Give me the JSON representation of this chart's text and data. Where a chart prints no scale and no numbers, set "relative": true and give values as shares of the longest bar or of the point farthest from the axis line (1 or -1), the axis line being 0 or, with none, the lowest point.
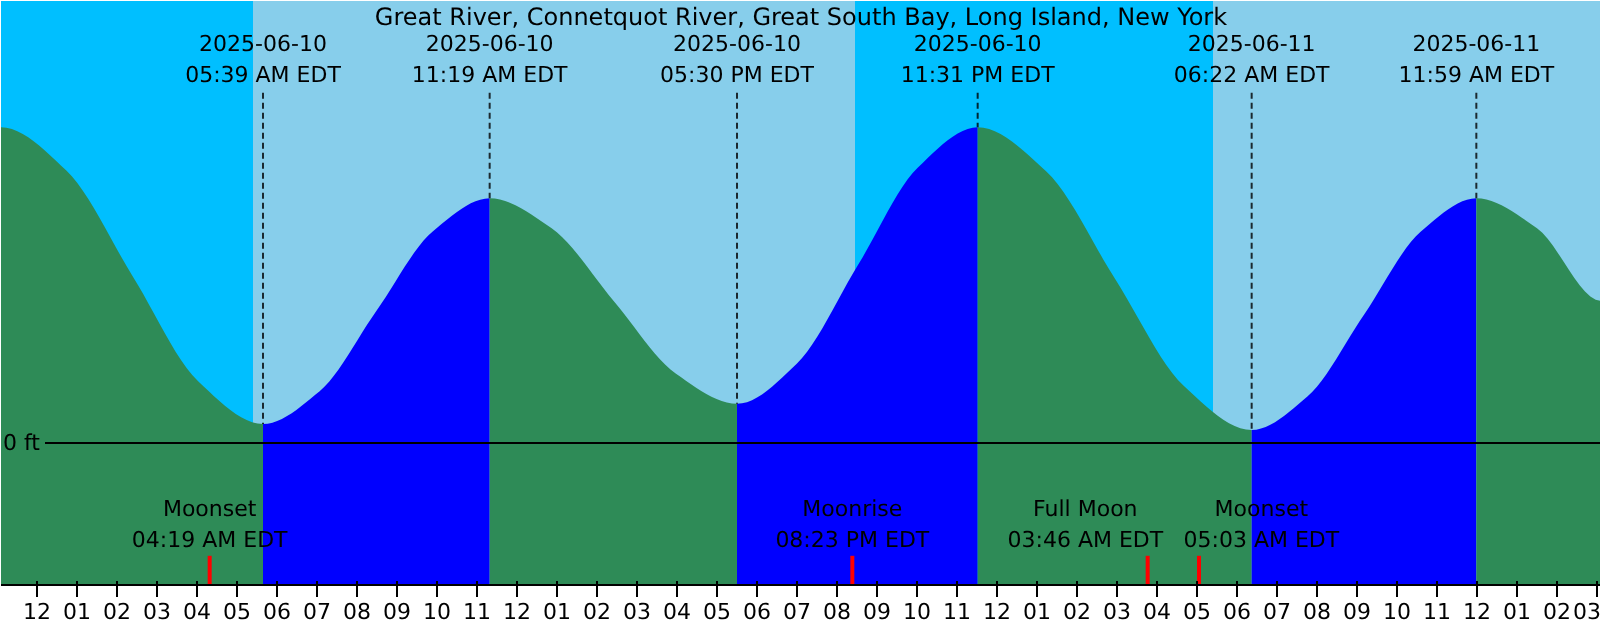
{
  "chart_data": {
    "type": "area",
    "relative": true,
    "title": "Great River, Connetquot River, Great South Bay, Long Island, New York",
    "xlim": [
      "2025-06-09T23:06",
      "2025-06-11T15:06"
    ],
    "xticks": [
      {
        "value": "2025-06-10T00:00",
        "label": "12"
      },
      {
        "value": "2025-06-10T01:00",
        "label": "01"
      },
      {
        "value": "2025-06-10T02:00",
        "label": "02"
      },
      {
        "value": "2025-06-10T03:00",
        "label": "03"
      },
      {
        "value": "2025-06-10T04:00",
        "label": "04"
      },
      {
        "value": "2025-06-10T05:00",
        "label": "05"
      },
      {
        "value": "2025-06-10T06:00",
        "label": "06"
      },
      {
        "value": "2025-06-10T07:00",
        "label": "07"
      },
      {
        "value": "2025-06-10T08:00",
        "label": "08"
      },
      {
        "value": "2025-06-10T09:00",
        "label": "09"
      },
      {
        "value": "2025-06-10T10:00",
        "label": "10"
      },
      {
        "value": "2025-06-10T11:00",
        "label": "11"
      },
      {
        "value": "2025-06-10T12:00",
        "label": "12"
      },
      {
        "value": "2025-06-10T13:00",
        "label": "01"
      },
      {
        "value": "2025-06-10T14:00",
        "label": "02"
      },
      {
        "value": "2025-06-10T15:00",
        "label": "03"
      },
      {
        "value": "2025-06-10T16:00",
        "label": "04"
      },
      {
        "value": "2025-06-10T17:00",
        "label": "05"
      },
      {
        "value": "2025-06-10T18:00",
        "label": "06"
      },
      {
        "value": "2025-06-10T19:00",
        "label": "07"
      },
      {
        "value": "2025-06-10T20:00",
        "label": "08"
      },
      {
        "value": "2025-06-10T21:00",
        "label": "09"
      },
      {
        "value": "2025-06-10T22:00",
        "label": "10"
      },
      {
        "value": "2025-06-10T23:00",
        "label": "11"
      },
      {
        "value": "2025-06-11T00:00",
        "label": "12"
      },
      {
        "value": "2025-06-11T01:00",
        "label": "01"
      },
      {
        "value": "2025-06-11T02:00",
        "label": "02"
      },
      {
        "value": "2025-06-11T03:00",
        "label": "03"
      },
      {
        "value": "2025-06-11T04:00",
        "label": "04"
      },
      {
        "value": "2025-06-11T05:00",
        "label": "05"
      },
      {
        "value": "2025-06-11T06:00",
        "label": "06"
      },
      {
        "value": "2025-06-11T07:00",
        "label": "07"
      },
      {
        "value": "2025-06-11T08:00",
        "label": "08"
      },
      {
        "value": "2025-06-11T09:00",
        "label": "09"
      },
      {
        "value": "2025-06-11T10:00",
        "label": "10"
      },
      {
        "value": "2025-06-11T11:00",
        "label": "11"
      },
      {
        "value": "2025-06-11T12:00",
        "label": "12"
      },
      {
        "value": "2025-06-11T13:00",
        "label": "01"
      },
      {
        "value": "2025-06-11T14:00",
        "label": "02"
      },
      {
        "value": "2025-06-11T15:00",
        "label": "03"
      }
    ],
    "series": [
      {
        "color": "#2e8b57",
        "x": [
          "2025-06-09T23:06",
          "2025-06-10T00:44",
          "2025-06-10T02:23",
          "2025-06-10T04:01",
          "2025-06-10T05:39"
        ],
        "values": [
          1.0,
          0.863,
          0.53,
          0.197,
          0.06
        ]
      },
      {
        "color": "#0000ff",
        "x": [
          "2025-06-10T05:39",
          "2025-06-10T07:04",
          "2025-06-10T08:29",
          "2025-06-10T09:54",
          "2025-06-10T11:19"
        ],
        "values": [
          0.06,
          0.164,
          0.418,
          0.671,
          0.775
        ]
      },
      {
        "color": "#2e8b57",
        "x": [
          "2025-06-10T11:19",
          "2025-06-10T12:52",
          "2025-06-10T14:25",
          "2025-06-10T15:58",
          "2025-06-10T17:30"
        ],
        "values": [
          0.775,
          0.68,
          0.45,
          0.22,
          0.124
        ]
      },
      {
        "color": "#0000ff",
        "x": [
          "2025-06-10T17:30",
          "2025-06-10T19:00",
          "2025-06-10T20:31",
          "2025-06-10T22:01",
          "2025-06-10T23:31"
        ],
        "values": [
          0.124,
          0.252,
          0.562,
          0.872,
          1.0
        ]
      },
      {
        "color": "#2e8b57",
        "x": [
          "2025-06-10T23:31",
          "2025-06-11T01:14",
          "2025-06-11T02:57",
          "2025-06-11T04:40",
          "2025-06-11T06:22"
        ],
        "values": [
          1.0,
          0.86,
          0.52,
          0.181,
          0.041
        ]
      },
      {
        "color": "#0000ff",
        "x": [
          "2025-06-11T06:22",
          "2025-06-11T07:46",
          "2025-06-11T09:11",
          "2025-06-11T10:35",
          "2025-06-11T11:59"
        ],
        "values": [
          0.041,
          0.148,
          0.408,
          0.668,
          0.775
        ]
      },
      {
        "color": "#2e8b57",
        "x": [
          "2025-06-11T11:59",
          "2025-06-11T13:30",
          "2025-06-11T15:06"
        ],
        "values": [
          0.775,
          0.68,
          0.45
        ]
      }
    ],
    "bands": [
      {
        "axis": "x",
        "from": "2025-06-09T23:06",
        "to": "2025-06-10T05:24",
        "color": "#00bfff"
      },
      {
        "axis": "x",
        "from": "2025-06-10T05:24",
        "to": "2025-06-10T20:27",
        "color": "#87ceeb"
      },
      {
        "axis": "x",
        "from": "2025-06-10T20:27",
        "to": "2025-06-11T05:24",
        "color": "#00bfff"
      },
      {
        "axis": "x",
        "from": "2025-06-11T05:24",
        "to": "2025-06-11T15:06",
        "color": "#87ceeb"
      }
    ],
    "ref_lines": [
      {
        "axis": "y",
        "value": 0,
        "label": "0 ft",
        "color": "#000000"
      },
      {
        "axis": "x",
        "value": "2025-06-10T04:19",
        "label": "Moonset\n04:19 AM EDT",
        "color": "#ff0000"
      },
      {
        "axis": "x",
        "value": "2025-06-10T20:23",
        "label": "Moonrise\n08:23 PM EDT",
        "color": "#ff0000"
      },
      {
        "axis": "x",
        "value": "2025-06-11T03:46",
        "label": "Full Moon\n03:46 AM EDT",
        "color": "#ff0000"
      },
      {
        "axis": "x",
        "value": "2025-06-11T05:03",
        "label": "Moonset\n05:03 AM EDT",
        "color": "#ff0000"
      }
    ],
    "annotations": [
      {
        "text": "2025-06-10\n05:39 AM EDT",
        "x": "2025-06-10T05:39",
        "y": 0.06
      },
      {
        "text": "2025-06-10\n11:19 AM EDT",
        "x": "2025-06-10T11:19",
        "y": 0.775
      },
      {
        "text": "2025-06-10\n05:30 PM EDT",
        "x": "2025-06-10T17:30",
        "y": 0.124
      },
      {
        "text": "2025-06-10\n11:31 PM EDT",
        "x": "2025-06-10T23:31",
        "y": 1.0
      },
      {
        "text": "2025-06-11\n06:22 AM EDT",
        "x": "2025-06-11T06:22",
        "y": 0.041
      },
      {
        "text": "2025-06-11\n11:59 AM EDT",
        "x": "2025-06-11T11:59",
        "y": 0.775
      }
    ]
  }
}
